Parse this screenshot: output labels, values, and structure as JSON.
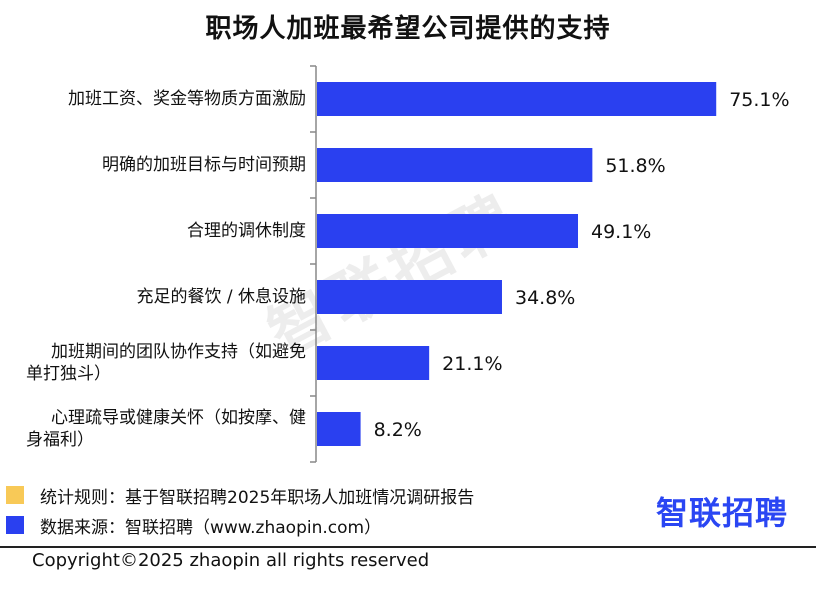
{
  "chart_data": {
    "type": "bar",
    "orientation": "horizontal",
    "title": "职场人加班最希望公司提供的支持",
    "categories": [
      [
        "加班工资、奖金等物质方面激励"
      ],
      [
        "明确的加班目标与时间预期"
      ],
      [
        "合理的调休制度"
      ],
      [
        "充足的餐饮 / 休息设施"
      ],
      [
        "加班期间的团队协作支持（如避免",
        "单打独斗）"
      ],
      [
        "心理疏导或健康关怀（如按摩、健",
        "身福利）"
      ]
    ],
    "values": [
      75.1,
      51.8,
      49.1,
      34.8,
      21.1,
      8.2
    ],
    "value_labels": [
      "75.1%",
      "51.8%",
      "49.1%",
      "34.8%",
      "21.1%",
      "8.2%"
    ],
    "xlim": [
      0,
      76
    ],
    "bar_color": "#2a40f0",
    "grid": false,
    "legend": "none"
  },
  "watermark": "智联招聘",
  "footer": {
    "rule_label": "统计规则：基于智联招聘2025年职场人加班情况调研报告",
    "source_label": "数据来源：智联招聘（www.zhaopin.com）",
    "rule_color": "#f8c957",
    "source_color": "#2a40f0",
    "logo": "智联招聘",
    "copyright": "Copyright©2025 zhaopin all rights reserved"
  }
}
